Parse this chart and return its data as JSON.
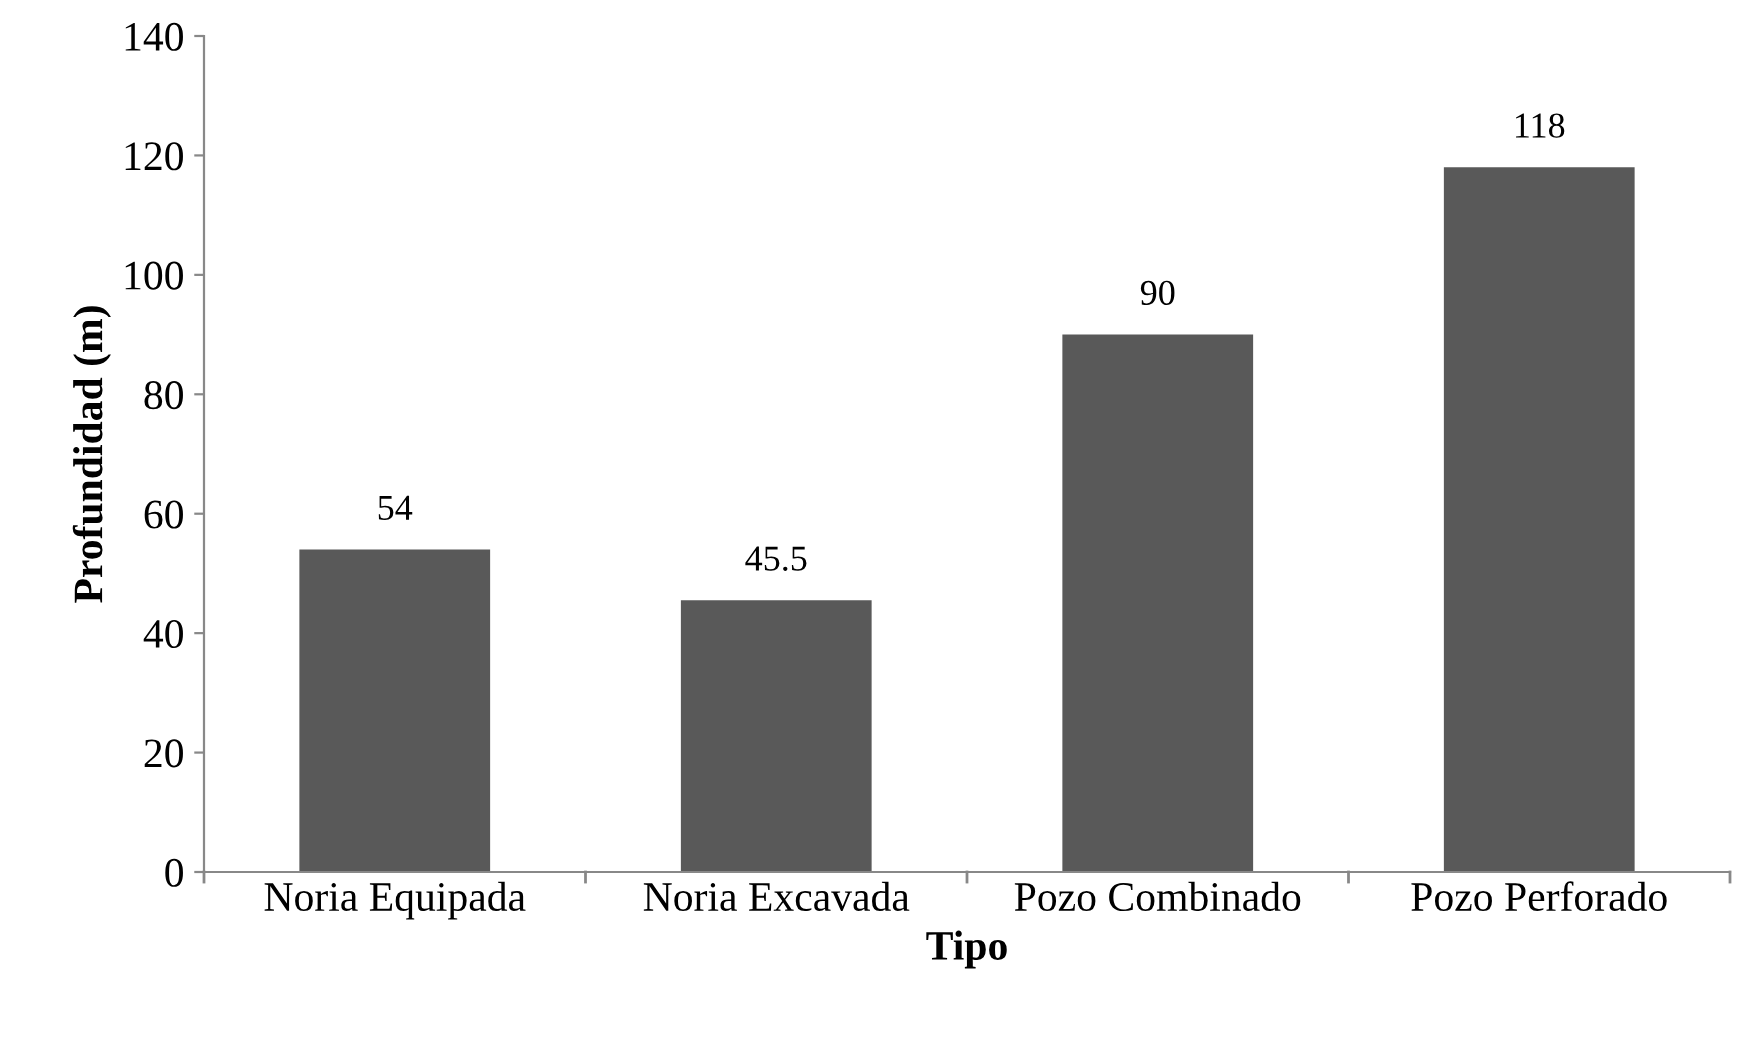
{
  "chart_data": {
    "type": "bar",
    "xlabel": "Tipo",
    "ylabel": "Profundidad (m)",
    "categories": [
      "Noria Equipada",
      "Noria Excavada",
      "Pozo Combinado",
      "Pozo Perforado"
    ],
    "values": [
      54,
      45.5,
      90,
      118
    ],
    "color": "#595959",
    "ylim": [
      0,
      140
    ],
    "yticks": [
      0,
      20,
      40,
      60,
      80,
      100,
      120,
      140
    ],
    "grid": false,
    "data_labels": true
  }
}
